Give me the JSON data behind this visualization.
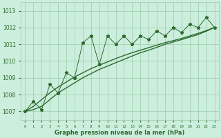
{
  "x": [
    0,
    1,
    2,
    3,
    4,
    5,
    6,
    7,
    8,
    9,
    10,
    11,
    12,
    13,
    14,
    15,
    16,
    17,
    18,
    19,
    20,
    21,
    22,
    23
  ],
  "y_zigzag": [
    1007.0,
    1007.6,
    1007.1,
    1008.6,
    1008.1,
    1009.3,
    1009.0,
    1011.1,
    1011.5,
    1009.8,
    1011.5,
    1011.0,
    1011.5,
    1011.0,
    1011.5,
    1011.3,
    1011.8,
    1011.5,
    1012.0,
    1011.7,
    1012.2,
    1012.0,
    1012.6,
    1012.0
  ],
  "smooth1": [
    1007.0,
    1007.3,
    1007.7,
    1008.1,
    1008.45,
    1008.75,
    1009.05,
    1009.3,
    1009.55,
    1009.75,
    1009.95,
    1010.15,
    1010.33,
    1010.5,
    1010.65,
    1010.8,
    1010.95,
    1011.1,
    1011.22,
    1011.35,
    1011.5,
    1011.65,
    1011.82,
    1012.0
  ],
  "smooth2": [
    1007.0,
    1007.1,
    1007.3,
    1007.7,
    1008.1,
    1008.4,
    1008.7,
    1009.0,
    1009.25,
    1009.5,
    1009.7,
    1009.9,
    1010.1,
    1010.3,
    1010.5,
    1010.65,
    1010.82,
    1011.0,
    1011.14,
    1011.28,
    1011.43,
    1011.58,
    1011.78,
    1012.0
  ],
  "ylim": [
    1006.5,
    1013.5
  ],
  "yticks": [
    1007,
    1008,
    1009,
    1010,
    1011,
    1012,
    1013
  ],
  "xlim": [
    -0.5,
    23.5
  ],
  "xtick_labels": [
    "0",
    "1",
    "2",
    "3",
    "4",
    "5",
    "6",
    "7",
    "8",
    "9",
    "10",
    "11",
    "12",
    "13",
    "14",
    "15",
    "16",
    "17",
    "18",
    "19",
    "20",
    "21",
    "22",
    "23"
  ],
  "xlabel": "Graphe pression niveau de la mer (hPa)",
  "line_color": "#2d6a2d",
  "bg_color": "#cceedd",
  "grid_color": "#99ccaa",
  "figsize": [
    3.2,
    2.0
  ],
  "dpi": 100
}
